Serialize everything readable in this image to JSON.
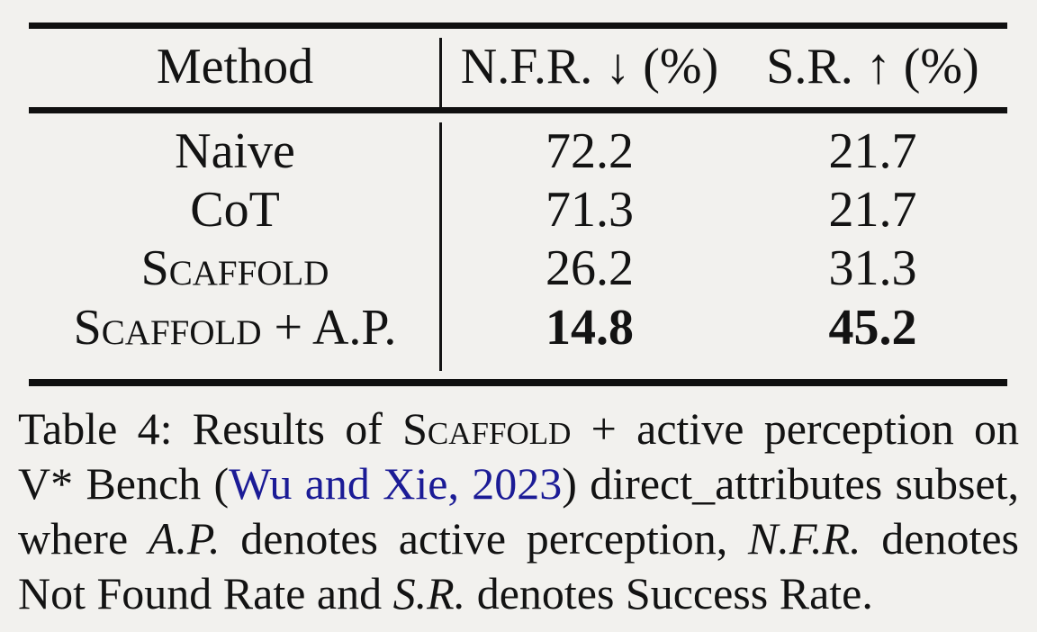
{
  "table": {
    "header": {
      "method": "Method",
      "nfr": "N.F.R. ↓ (%)",
      "sr": "S.R. ↑ (%)"
    },
    "rows": [
      {
        "method": "Naive",
        "nfr": "72.2",
        "sr": "21.7"
      },
      {
        "method": "CoT",
        "nfr": "71.3",
        "sr": "21.7"
      },
      {
        "method": "Scaffold",
        "nfr": "26.2",
        "sr": "31.3"
      },
      {
        "method": "Scaffold + A.P.",
        "nfr": "14.8",
        "sr": "45.2"
      }
    ]
  },
  "caption": {
    "line1": {
      "t1": "Table 4: Results of ",
      "scaffold": "Scaffold",
      "t2": " + active perception on"
    },
    "line2": {
      "t1": "V* Bench (",
      "citation": "Wu and Xie, 2023",
      "t2": ") direct_attributes subset,"
    },
    "line3": {
      "t1": "where ",
      "ap": "A.P.",
      "t2": " denotes active perception, ",
      "nfr": "N.F.R.",
      "t3": " denotes"
    },
    "line4": {
      "t1": "Not Found Rate and ",
      "sr": "S.R.",
      "t2": " denotes Success Rate."
    }
  },
  "colors": {
    "link_blue": "#1b1b96",
    "text": "#131313",
    "rule": "#101010",
    "background": "#f2f1ee"
  }
}
